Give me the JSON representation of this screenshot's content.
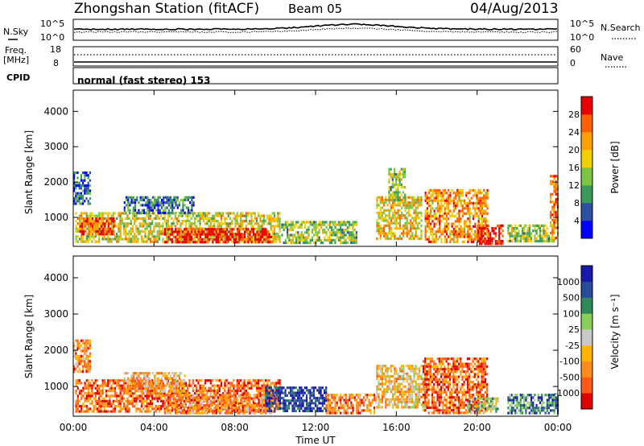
{
  "header": {
    "title": "Zhongshan Station (fitACF)",
    "beam": "Beam 05",
    "date": "04/Aug/2013"
  },
  "panels": {
    "nsky": {
      "left_label": "N.Sky",
      "left_ticks": [
        "10^5",
        "10^0"
      ],
      "right_ticks": [
        "10^5",
        "10^0"
      ],
      "right_label": "N.Search"
    },
    "freq": {
      "left_label_1": "Freq.",
      "left_label_2": "[MHz]",
      "left_ticks": [
        "18",
        "8"
      ],
      "right_ticks": [
        "60",
        "0"
      ],
      "right_label": "Nave"
    },
    "cpid": {
      "label": "CPID",
      "text": "normal (fast stereo) 153"
    }
  },
  "colors": {
    "power": [
      "#0000ff",
      "#2d4fa0",
      "#3a9a5c",
      "#7cc442",
      "#f0d000",
      "#ffa000",
      "#ff6000",
      "#e80000"
    ],
    "velocity": [
      "#e00000",
      "#ff5a1a",
      "#ff8c1a",
      "#ffb400",
      "#c8c8c8",
      "#88d05a",
      "#2f8a5a",
      "#2a4a9a",
      "#1a1aaa"
    ]
  },
  "chart_data": [
    {
      "type": "heatmap",
      "name": "power",
      "xlabel": "",
      "ylabel": "Slant Range [km]",
      "xlim": [
        0,
        24
      ],
      "ylim": [
        180,
        4600
      ],
      "y_ticks": [
        "1000",
        "2000",
        "3000",
        "4000"
      ],
      "colorbar_label": "Power [dB]",
      "colorbar_ticks": [
        "4",
        "8",
        "12",
        "16",
        "20",
        "24",
        "28"
      ],
      "blobs": [
        {
          "t0": 0.1,
          "t1": 10.2,
          "r0": 300,
          "r1": 1150,
          "level": 0.55
        },
        {
          "t0": 4.5,
          "t1": 9.8,
          "r0": 300,
          "r1": 700,
          "level": 0.95
        },
        {
          "t0": 0.3,
          "t1": 2.0,
          "r0": 500,
          "r1": 1000,
          "level": 0.85
        },
        {
          "t0": 2.5,
          "t1": 6.0,
          "r0": 1100,
          "r1": 1600,
          "level": 0.25
        },
        {
          "t0": 10.3,
          "t1": 14.0,
          "r0": 300,
          "r1": 900,
          "level": 0.45
        },
        {
          "t0": 15.0,
          "t1": 17.2,
          "r0": 400,
          "r1": 1600,
          "level": 0.6
        },
        {
          "t0": 15.6,
          "t1": 16.4,
          "r0": 1500,
          "r1": 2400,
          "level": 0.45
        },
        {
          "t0": 17.4,
          "t1": 20.5,
          "r0": 300,
          "r1": 1800,
          "level": 0.7
        },
        {
          "t0": 20.0,
          "t1": 21.3,
          "r0": 250,
          "r1": 800,
          "level": 0.95
        },
        {
          "t0": 21.5,
          "t1": 23.8,
          "r0": 300,
          "r1": 800,
          "level": 0.45
        },
        {
          "t0": 0.0,
          "t1": 0.8,
          "r0": 1400,
          "r1": 2300,
          "level": 0.2
        },
        {
          "t0": 23.6,
          "t1": 24.0,
          "r0": 400,
          "r1": 2200,
          "level": 0.75
        }
      ]
    },
    {
      "type": "heatmap",
      "name": "velocity",
      "xlabel": "Time UT",
      "ylabel": "Slant Range [km]",
      "xlim": [
        0,
        24
      ],
      "ylim": [
        180,
        4600
      ],
      "x_ticks": [
        "00:00",
        "04:00",
        "08:00",
        "12:00",
        "16:00",
        "20:00",
        "00:00"
      ],
      "y_ticks": [
        "1000",
        "2000",
        "3000",
        "4000"
      ],
      "colorbar_label": "Velocity [m s⁻¹]",
      "colorbar_ticks": [
        "1000",
        "500",
        "100",
        "25",
        "-25",
        "-100",
        "-500",
        "-1000"
      ],
      "blobs": [
        {
          "t0": 0.1,
          "t1": 10.2,
          "r0": 300,
          "r1": 1200,
          "level": 0.2
        },
        {
          "t0": 4.5,
          "t1": 9.8,
          "r0": 300,
          "r1": 800,
          "level": 0.3
        },
        {
          "t0": 2.5,
          "t1": 5.5,
          "r0": 900,
          "r1": 1400,
          "level": 0.35
        },
        {
          "t0": 9.5,
          "t1": 12.5,
          "r0": 300,
          "r1": 1000,
          "level": 0.9
        },
        {
          "t0": 12.5,
          "t1": 15.0,
          "r0": 300,
          "r1": 800,
          "level": 0.25
        },
        {
          "t0": 15.0,
          "t1": 17.5,
          "r0": 400,
          "r1": 1600,
          "level": 0.4
        },
        {
          "t0": 17.3,
          "t1": 20.5,
          "r0": 300,
          "r1": 1800,
          "level": 0.2
        },
        {
          "t0": 19.5,
          "t1": 21.0,
          "r0": 300,
          "r1": 700,
          "level": 0.6
        },
        {
          "t0": 21.5,
          "t1": 24.0,
          "r0": 300,
          "r1": 800,
          "level": 0.75
        },
        {
          "t0": 0.0,
          "t1": 0.8,
          "r0": 1400,
          "r1": 2300,
          "level": 0.3
        }
      ]
    }
  ]
}
